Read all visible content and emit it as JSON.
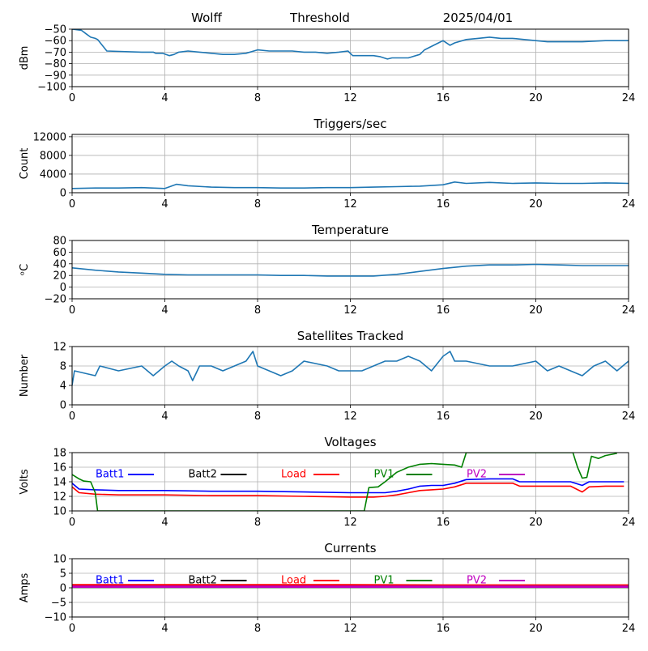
{
  "header": {
    "station": "Wolff",
    "mode": "Threshold",
    "date": "2025/04/01"
  },
  "chart_data": [
    {
      "type": "line",
      "title": "",
      "xlabel": "",
      "ylabel": "dBm",
      "xlim": [
        0,
        24
      ],
      "ylim": [
        -100,
        -50
      ],
      "xticks": [
        "0",
        "4",
        "8",
        "12",
        "16",
        "20",
        "24"
      ],
      "yticks": [
        "−50",
        "−60",
        "−70",
        "−80",
        "−90",
        "−100"
      ],
      "grid": true,
      "series": [
        {
          "color": "#1f77b4",
          "x": [
            0,
            0.4,
            0.6,
            0.8,
            1.0,
            1.1,
            1.5,
            3.0,
            3.5,
            3.6,
            3.9,
            4.2,
            4.4,
            4.6,
            5.0,
            5.5,
            6.5,
            7.0,
            7.5,
            8.0,
            8.5,
            9.0,
            9.5,
            10.0,
            10.5,
            11.0,
            11.5,
            11.9,
            12.1,
            12.5,
            13.0,
            13.3,
            13.6,
            13.8,
            14.0,
            14.5,
            15.0,
            15.2,
            15.6,
            15.8,
            16.0,
            16.3,
            16.5,
            17.0,
            17.5,
            18.0,
            18.5,
            19.0,
            19.5,
            20.0,
            20.5,
            21.0,
            22.0,
            23.0,
            23.5,
            24.0
          ],
          "y": [
            -50,
            -51,
            -54,
            -57,
            -58,
            -59,
            -69,
            -70,
            -70,
            -71,
            -71,
            -73,
            -72,
            -70,
            -69,
            -70,
            -72,
            -72,
            -71,
            -68,
            -69,
            -69,
            -69,
            -70,
            -70,
            -71,
            -70,
            -69,
            -73,
            -73,
            -73,
            -74,
            -76,
            -75,
            -75,
            -75,
            -72,
            -68,
            -64,
            -62,
            -60,
            -64,
            -62,
            -59,
            -58,
            -57,
            -58,
            -58,
            -59,
            -60,
            -61,
            -61,
            -61,
            -60,
            -60,
            -60
          ]
        }
      ]
    },
    {
      "type": "line",
      "title": "Triggers/sec",
      "xlabel": "",
      "ylabel": "Count",
      "xlim": [
        0,
        24
      ],
      "ylim": [
        0,
        12500
      ],
      "xticks": [
        "0",
        "4",
        "8",
        "12",
        "16",
        "20",
        "24"
      ],
      "yticks": [
        "12000",
        "8000",
        "4000",
        "0"
      ],
      "grid": true,
      "series": [
        {
          "color": "#1f77b4",
          "x": [
            0,
            1,
            2,
            3,
            4,
            4.5,
            5,
            6,
            7,
            8,
            9,
            10,
            11,
            12,
            13,
            14,
            15,
            16,
            16.5,
            17,
            18,
            19,
            20,
            21,
            22,
            23,
            24
          ],
          "y": [
            900,
            1000,
            1000,
            1100,
            900,
            1800,
            1500,
            1200,
            1100,
            1100,
            1000,
            1000,
            1100,
            1100,
            1200,
            1300,
            1400,
            1700,
            2300,
            2000,
            2200,
            2000,
            2100,
            2000,
            2000,
            2100,
            2000
          ]
        }
      ]
    },
    {
      "type": "line",
      "title": "Temperature",
      "xlabel": "",
      "ylabel": "ᵒC",
      "xlim": [
        0,
        24
      ],
      "ylim": [
        -20,
        80
      ],
      "xticks": [
        "0",
        "4",
        "8",
        "12",
        "16",
        "20",
        "24"
      ],
      "yticks": [
        "80",
        "60",
        "40",
        "20",
        "0",
        "−20"
      ],
      "grid": true,
      "series": [
        {
          "color": "#1f77b4",
          "x": [
            0,
            1,
            2,
            3,
            4,
            5,
            6,
            7,
            8,
            9,
            10,
            11,
            12,
            13,
            14,
            15,
            16,
            17,
            18,
            19,
            20,
            21,
            22,
            23,
            24
          ],
          "y": [
            33,
            29,
            26,
            24,
            22,
            21,
            21,
            21,
            21,
            20,
            20,
            19,
            19,
            19,
            22,
            27,
            32,
            36,
            38,
            38,
            39,
            38,
            37,
            37,
            37
          ]
        }
      ]
    },
    {
      "type": "line",
      "title": "Satellites Tracked",
      "xlabel": "",
      "ylabel": "Number",
      "xlim": [
        0,
        24
      ],
      "ylim": [
        0,
        12
      ],
      "xticks": [
        "0",
        "4",
        "8",
        "12",
        "16",
        "20",
        "24"
      ],
      "yticks": [
        "12",
        "8",
        "4",
        "0"
      ],
      "grid": true,
      "series": [
        {
          "color": "#1f77b4",
          "x": [
            0,
            0.1,
            1,
            1.2,
            2,
            3,
            3.5,
            4,
            4.3,
            4.6,
            5,
            5.2,
            5.5,
            6,
            6.5,
            7,
            7.5,
            7.8,
            8,
            8.5,
            9,
            9.5,
            10,
            11,
            11.5,
            12,
            12.5,
            13,
            13.5,
            14,
            14.5,
            15,
            15.5,
            16,
            16.3,
            16.5,
            17,
            18,
            19,
            20,
            20.5,
            21,
            21.5,
            22,
            22.5,
            23,
            23.5,
            24
          ],
          "y": [
            4,
            7,
            6,
            8,
            7,
            8,
            6,
            8,
            9,
            8,
            7,
            5,
            8,
            8,
            7,
            8,
            9,
            11,
            8,
            7,
            6,
            7,
            9,
            8,
            7,
            7,
            7,
            8,
            9,
            9,
            10,
            9,
            7,
            10,
            11,
            9,
            9,
            8,
            8,
            9,
            7,
            8,
            7,
            6,
            8,
            9,
            7,
            9
          ]
        }
      ]
    },
    {
      "type": "line",
      "title": "Voltages",
      "xlabel": "",
      "ylabel": "Volts",
      "xlim": [
        0,
        24
      ],
      "ylim": [
        10,
        18
      ],
      "xticks": [
        "0",
        "4",
        "8",
        "12",
        "16",
        "20",
        "24"
      ],
      "yticks": [
        "18",
        "16",
        "14",
        "12",
        "10"
      ],
      "grid": true,
      "legend_position": "inside-top",
      "series": [
        {
          "name": "Batt1",
          "color": "#0000ff",
          "x": [
            0,
            0.3,
            1,
            2,
            4,
            6,
            8,
            10,
            12,
            13,
            13.5,
            14,
            14.5,
            15,
            15.5,
            16,
            16.5,
            17,
            18,
            19,
            19.3,
            20,
            21,
            21.5,
            22,
            22.3,
            23,
            23.8
          ],
          "y": [
            13.8,
            13.0,
            12.9,
            12.8,
            12.8,
            12.7,
            12.7,
            12.6,
            12.5,
            12.5,
            12.5,
            12.7,
            13.0,
            13.4,
            13.5,
            13.5,
            13.8,
            14.3,
            14.4,
            14.4,
            14.0,
            14.0,
            14.0,
            14.0,
            13.5,
            14.0,
            14.0,
            14.0
          ]
        },
        {
          "name": "Batt2",
          "color": "#000000",
          "x": [],
          "y": []
        },
        {
          "name": "Load",
          "color": "#ff0000",
          "x": [
            0,
            0.3,
            1,
            2,
            4,
            6,
            8,
            10,
            12,
            13,
            13.5,
            14,
            14.5,
            15,
            15.5,
            16,
            16.5,
            17,
            18,
            19,
            19.3,
            20,
            21,
            21.5,
            22,
            22.3,
            23,
            23.8
          ],
          "y": [
            13.3,
            12.5,
            12.3,
            12.2,
            12.2,
            12.1,
            12.1,
            12.0,
            11.9,
            11.9,
            12.0,
            12.2,
            12.5,
            12.8,
            12.9,
            13.0,
            13.3,
            13.8,
            13.8,
            13.8,
            13.4,
            13.4,
            13.4,
            13.4,
            12.6,
            13.3,
            13.4,
            13.4
          ]
        },
        {
          "name": "PV1",
          "color": "#008000",
          "x": [
            0,
            0.3,
            0.5,
            0.8,
            1.0,
            1.1,
            12.6,
            12.8,
            13.2,
            13.5,
            14.0,
            14.5,
            15.0,
            15.5,
            16.0,
            16.5,
            16.8,
            17.0,
            21.6,
            21.8,
            22.0,
            22.2,
            22.4,
            22.7,
            23.0,
            23.5
          ],
          "y": [
            15.0,
            14.4,
            14.1,
            14.0,
            12.5,
            10.0,
            10.0,
            13.2,
            13.3,
            14.0,
            15.3,
            16.0,
            16.4,
            16.5,
            16.4,
            16.3,
            16.0,
            18.0,
            18.0,
            16.0,
            14.5,
            14.6,
            17.5,
            17.2,
            17.6,
            17.9
          ]
        },
        {
          "name": "PV2",
          "color": "#bf00bf",
          "x": [],
          "y": []
        }
      ]
    },
    {
      "type": "line",
      "title": "Currents",
      "xlabel": "",
      "ylabel": "Amps",
      "xlim": [
        0,
        24
      ],
      "ylim": [
        -10,
        10
      ],
      "xticks": [
        "0",
        "4",
        "8",
        "12",
        "16",
        "20",
        "24"
      ],
      "yticks": [
        "10",
        "5",
        "0",
        "−5",
        "−10"
      ],
      "grid": true,
      "legend_position": "inside-top",
      "series": [
        {
          "name": "Batt1",
          "color": "#0000ff",
          "x": [
            0,
            24
          ],
          "y": [
            0.6,
            0.6
          ]
        },
        {
          "name": "Batt2",
          "color": "#000000",
          "x": [],
          "y": []
        },
        {
          "name": "Load",
          "color": "#ff0000",
          "x": [
            0,
            4,
            8,
            12,
            16,
            20,
            24
          ],
          "y": [
            0.9,
            0.9,
            0.9,
            0.9,
            0.8,
            0.8,
            0.8
          ]
        },
        {
          "name": "PV1",
          "color": "#008000",
          "x": [
            0,
            24
          ],
          "y": [
            0.3,
            0.3
          ]
        },
        {
          "name": "PV2",
          "color": "#bf00bf",
          "x": [
            0,
            24
          ],
          "y": [
            0.4,
            0.4
          ]
        }
      ]
    }
  ]
}
